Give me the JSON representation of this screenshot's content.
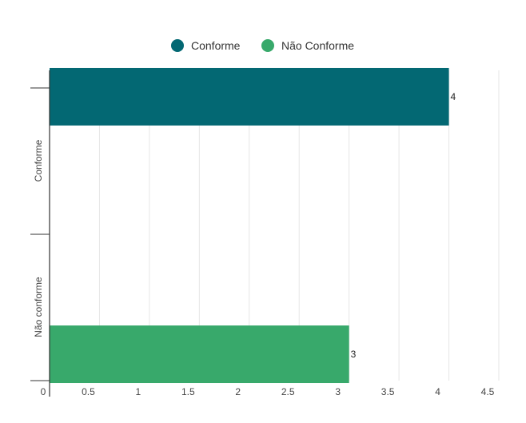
{
  "chart_data": {
    "type": "bar",
    "orientation": "horizontal",
    "categories": [
      "Conforme",
      "Não conforme"
    ],
    "series": [
      {
        "name": "Conforme",
        "values": [
          4,
          null
        ],
        "color": "#036873"
      },
      {
        "name": "Não Conforme",
        "values": [
          null,
          3
        ],
        "color": "#38a96b"
      }
    ],
    "data_labels": [
      "4",
      "3"
    ],
    "x_ticks": [
      "0",
      "0.5",
      "1",
      "1.5",
      "2",
      "2.5",
      "3",
      "3.5",
      "4",
      "4.5"
    ],
    "xlim": [
      0,
      4.5
    ],
    "grid": true,
    "legend_position": "top-center"
  }
}
